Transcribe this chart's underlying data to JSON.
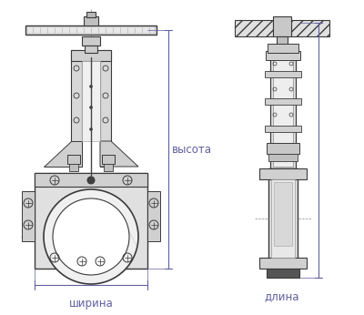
{
  "bg_color": "#ffffff",
  "line_color": "#3a3a3a",
  "dim_line_color": "#6060a0",
  "label_color": "#6060a0",
  "label_fontsize": 8.5,
  "fig_width": 4.0,
  "fig_height": 3.46,
  "dpi": 100,
  "labels": {
    "width": "ширина",
    "height": "высота",
    "length": "длина"
  }
}
